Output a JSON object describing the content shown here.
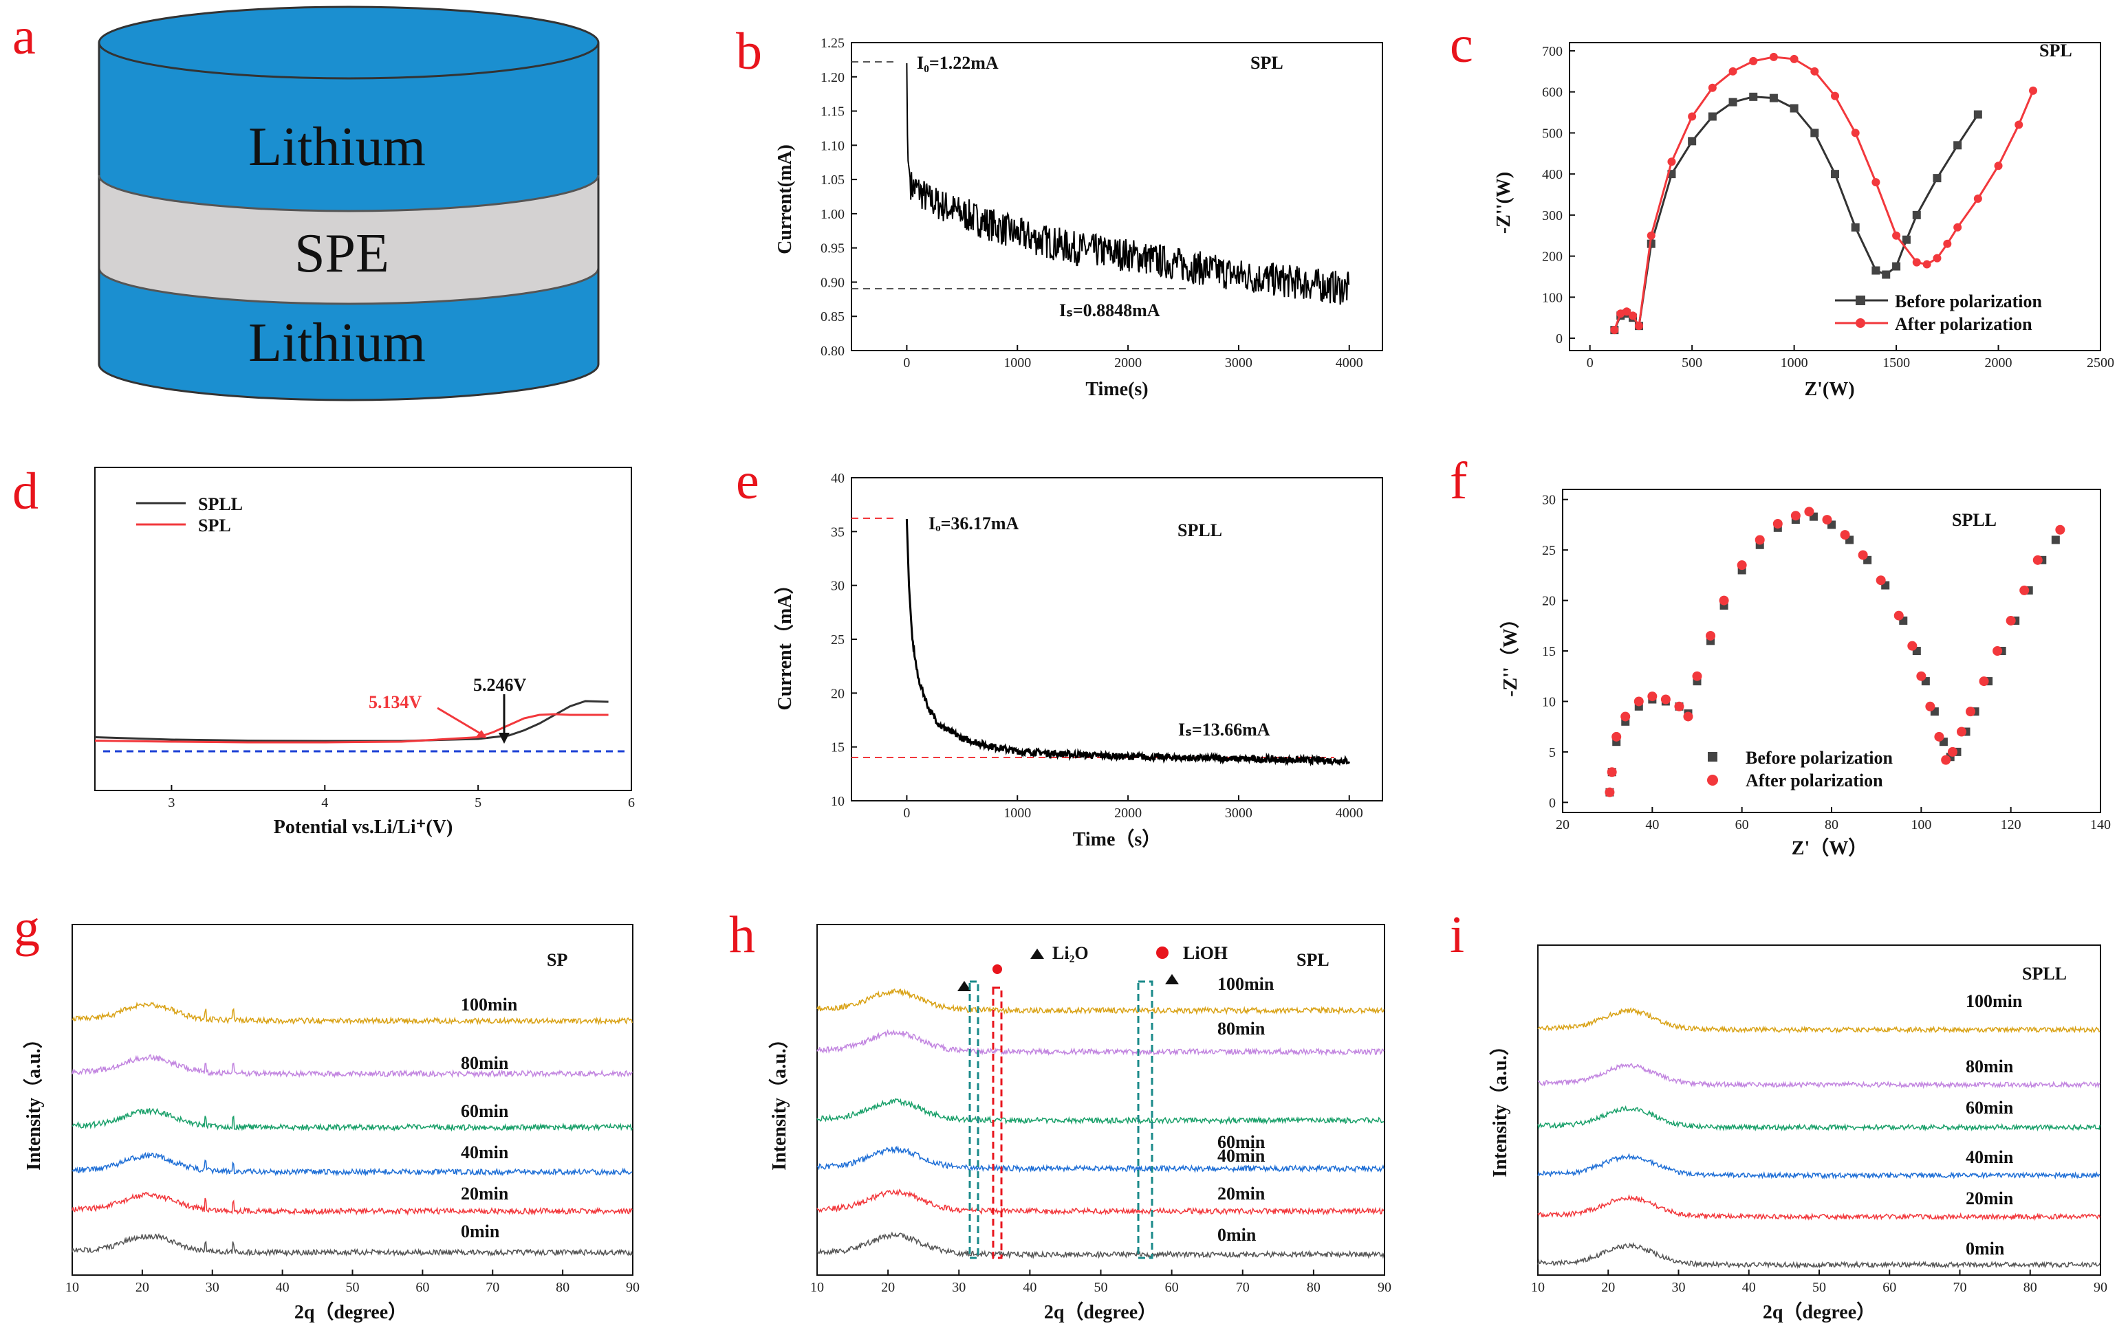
{
  "panels": {
    "a": {
      "letter": "a",
      "layers": [
        "Lithium",
        "SPE",
        "Lithium"
      ]
    },
    "b": {
      "letter": "b",
      "title": "SPL",
      "xlabel": "Time(s)",
      "ylabel": "Current(mA)",
      "i0": "I₀=1.22mA",
      "is": "Iₛ=0.8848mA"
    },
    "c": {
      "letter": "c",
      "title": "SPL",
      "xlabel": "Z'(W)",
      "ylabel": "-Z''(W)",
      "legend": [
        "Before polarization",
        "After polarization"
      ]
    },
    "d": {
      "letter": "d",
      "xlabel": "Potential vs.Li/Li⁺(V)",
      "legend": [
        "SPLL",
        "SPL"
      ],
      "v_spl": "5.134V",
      "v_spll": "5.246V"
    },
    "e": {
      "letter": "e",
      "title": "SPLL",
      "xlabel": "Time（s）",
      "ylabel": "Current（mA）",
      "i0": "Iₒ=36.17mA",
      "is": "Iₛ=13.66mA"
    },
    "f": {
      "letter": "f",
      "title": "SPLL",
      "xlabel": "Z'（W）",
      "ylabel": "-Z''（W）",
      "legend": [
        "Before polarization",
        "After polarization"
      ]
    },
    "g": {
      "letter": "g",
      "title": "SP",
      "xlabel": "2q（degree）",
      "ylabel": "Intensity（a.u.）",
      "times": [
        "100min",
        "80min",
        "60min",
        "40min",
        "20min",
        "0min"
      ]
    },
    "h": {
      "letter": "h",
      "title": "SPL",
      "xlabel": "2q（degree）",
      "ylabel": "Intensity（a.u.）",
      "times": [
        "100min",
        "80min",
        "60min",
        "40min",
        "20min",
        "0min"
      ],
      "legend": [
        "Li₂O",
        "LiOH"
      ]
    },
    "i": {
      "letter": "i",
      "title": "SPLL",
      "xlabel": "2q（degree）",
      "ylabel": "Intensity（a.u.）",
      "times": [
        "100min",
        "80min",
        "60min",
        "40min",
        "20min",
        "0min"
      ]
    }
  },
  "colors": {
    "gold": "#d9a216",
    "violet": "#c285e0",
    "green": "#1aa06a",
    "blue": "#1f6fd6",
    "red": "#f2383c",
    "gray": "#555555",
    "cyl_blue": "#1b8fd0",
    "cyl_gray": "#d4d2d2"
  },
  "chart_data": [
    {
      "panel": "b",
      "type": "line",
      "title": "SPL",
      "xlabel": "Time(s)",
      "ylabel": "Current(mA)",
      "xlim": [
        -500,
        4300
      ],
      "ylim": [
        0.8,
        1.25
      ],
      "xticks": [
        0,
        1000,
        2000,
        3000,
        4000
      ],
      "yticks": [
        0.8,
        0.85,
        0.9,
        0.95,
        1.0,
        1.05,
        1.1,
        1.15,
        1.2,
        1.25
      ],
      "series": [
        {
          "name": "current",
          "x": [
            0,
            2,
            10,
            40,
            100,
            200,
            500,
            1000,
            1500,
            2000,
            2500,
            3000,
            3500,
            4000
          ],
          "y": [
            1.22,
            1.15,
            1.08,
            1.04,
            1.035,
            1.02,
            1.0,
            0.97,
            0.95,
            0.94,
            0.925,
            0.91,
            0.9,
            0.89
          ]
        }
      ],
      "annotations": {
        "I0": 1.22,
        "Is": 0.8848
      }
    },
    {
      "panel": "c",
      "type": "scatter",
      "title": "SPL",
      "xlabel": "Z'(W)",
      "ylabel": "-Z''(W)",
      "xlim": [
        -100,
        2500
      ],
      "ylim": [
        -30,
        720
      ],
      "xticks": [
        0,
        500,
        1000,
        1500,
        2000,
        2500
      ],
      "yticks": [
        0,
        100,
        200,
        300,
        400,
        500,
        600,
        700
      ],
      "series": [
        {
          "name": "Before polarization",
          "x": [
            120,
            150,
            180,
            210,
            240,
            300,
            400,
            500,
            600,
            700,
            800,
            900,
            1000,
            1100,
            1200,
            1300,
            1400,
            1450,
            1500,
            1550,
            1600,
            1700,
            1800,
            1900
          ],
          "y": [
            20,
            55,
            60,
            50,
            30,
            230,
            400,
            480,
            540,
            575,
            588,
            585,
            560,
            500,
            400,
            270,
            165,
            155,
            175,
            240,
            300,
            390,
            470,
            545
          ]
        },
        {
          "name": "After polarization",
          "x": [
            120,
            150,
            180,
            210,
            240,
            300,
            400,
            500,
            600,
            700,
            800,
            900,
            1000,
            1100,
            1200,
            1300,
            1400,
            1500,
            1600,
            1650,
            1700,
            1750,
            1800,
            1900,
            2000,
            2100,
            2170
          ],
          "y": [
            20,
            60,
            65,
            55,
            30,
            250,
            430,
            540,
            610,
            650,
            675,
            685,
            680,
            650,
            590,
            500,
            380,
            250,
            185,
            180,
            195,
            230,
            270,
            340,
            420,
            520,
            603
          ]
        }
      ]
    },
    {
      "panel": "d",
      "type": "line",
      "xlabel": "Potential vs.Li/Li⁺(V)",
      "xlim": [
        2.5,
        6
      ],
      "xticks": [
        3,
        4,
        5,
        6
      ],
      "series": [
        {
          "name": "SPLL",
          "x": [
            2.5,
            3,
            3.5,
            4,
            4.5,
            5,
            5.2,
            5.3,
            5.4,
            5.5,
            5.6,
            5.7,
            5.85
          ],
          "y": [
            0.55,
            0.48,
            0.45,
            0.44,
            0.44,
            0.5,
            0.6,
            0.75,
            0.95,
            1.2,
            1.45,
            1.6,
            1.58
          ]
        },
        {
          "name": "SPL",
          "x": [
            2.5,
            3,
            3.5,
            4,
            4.5,
            5,
            5.1,
            5.2,
            5.3,
            5.4,
            5.5,
            5.6,
            5.85
          ],
          "y": [
            0.45,
            0.42,
            0.4,
            0.4,
            0.42,
            0.55,
            0.7,
            0.9,
            1.1,
            1.2,
            1.22,
            1.2,
            1.2
          ]
        }
      ],
      "annotations": {
        "SPL_onset": 5.134,
        "SPLL_onset": 5.246
      }
    },
    {
      "panel": "e",
      "type": "line",
      "title": "SPLL",
      "xlabel": "Time（s）",
      "ylabel": "Current（mA）",
      "xlim": [
        -500,
        4300
      ],
      "ylim": [
        10,
        40
      ],
      "xticks": [
        0,
        1000,
        2000,
        3000,
        4000
      ],
      "yticks": [
        10,
        15,
        20,
        25,
        30,
        35,
        40
      ],
      "series": [
        {
          "name": "current",
          "x": [
            0,
            20,
            50,
            100,
            200,
            300,
            500,
            700,
            1000,
            1500,
            2000,
            2500,
            3000,
            3500,
            4000
          ],
          "y": [
            36.17,
            30,
            25,
            21.5,
            18.5,
            17,
            15.8,
            15.2,
            14.6,
            14.3,
            14.1,
            14.0,
            13.9,
            13.8,
            13.7
          ]
        }
      ],
      "annotations": {
        "I0": 36.17,
        "Is": 13.66
      }
    },
    {
      "panel": "f",
      "type": "scatter",
      "title": "SPLL",
      "xlabel": "Z'（W）",
      "ylabel": "-Z''（W）",
      "xlim": [
        20,
        140
      ],
      "ylim": [
        -1,
        31
      ],
      "xticks": [
        20,
        40,
        60,
        80,
        100,
        120,
        140
      ],
      "yticks": [
        0,
        5,
        10,
        15,
        20,
        25,
        30
      ],
      "series": [
        {
          "name": "Before polarization",
          "x": [
            30.5,
            31,
            32,
            34,
            37,
            40,
            43,
            46,
            48,
            50,
            53,
            56,
            60,
            64,
            68,
            72,
            76,
            80,
            84,
            88,
            92,
            96,
            99,
            101,
            103,
            105,
            106.5,
            108,
            110,
            112,
            115,
            118,
            121,
            124,
            127,
            130
          ],
          "y": [
            1,
            3,
            6,
            8,
            9.5,
            10.2,
            10,
            9.5,
            8.8,
            12,
            16,
            19.5,
            23,
            25.5,
            27.2,
            28,
            28.3,
            27.5,
            26,
            24,
            21.5,
            18,
            15,
            12,
            9,
            6,
            4.5,
            5,
            7,
            9,
            12,
            15,
            18,
            21,
            24,
            26
          ]
        },
        {
          "name": "After polarization",
          "x": [
            30.5,
            31,
            32,
            34,
            37,
            40,
            43,
            46,
            48,
            50,
            53,
            56,
            60,
            64,
            68,
            72,
            75,
            79,
            83,
            87,
            91,
            95,
            98,
            100,
            102,
            104,
            105.5,
            107,
            109,
            111,
            114,
            117,
            120,
            123,
            126,
            131
          ],
          "y": [
            1,
            3,
            6.5,
            8.5,
            10,
            10.5,
            10.2,
            9.5,
            8.5,
            12.5,
            16.5,
            20,
            23.5,
            26,
            27.6,
            28.4,
            28.8,
            28,
            26.5,
            24.5,
            22,
            18.5,
            15.5,
            12.5,
            9.5,
            6.5,
            4.2,
            5,
            7,
            9,
            12,
            15,
            18,
            21,
            24,
            27
          ]
        }
      ]
    },
    {
      "panel": "g",
      "type": "line",
      "title": "SP",
      "xlabel": "2q（degree）",
      "ylabel": "Intensity（a.u.）",
      "xlim": [
        10,
        90
      ],
      "xticks": [
        10,
        20,
        30,
        40,
        50,
        60,
        70,
        80,
        90
      ],
      "series": [
        "0min",
        "20min",
        "40min",
        "60min",
        "80min",
        "100min"
      ]
    },
    {
      "panel": "h",
      "type": "line",
      "title": "SPL",
      "xlabel": "2q（degree）",
      "ylabel": "Intensity（a.u.）",
      "xlim": [
        10,
        90
      ],
      "xticks": [
        10,
        20,
        30,
        40,
        50,
        60,
        70,
        80,
        90
      ],
      "series": [
        "0min",
        "20min",
        "40min",
        "60min",
        "80min",
        "100min"
      ]
    },
    {
      "panel": "i",
      "type": "line",
      "title": "SPLL",
      "xlabel": "2q（degree）",
      "ylabel": "Intensity（a.u.）",
      "xlim": [
        10,
        90
      ],
      "xticks": [
        10,
        20,
        30,
        40,
        50,
        60,
        70,
        80,
        90
      ],
      "series": [
        "0min",
        "20min",
        "40min",
        "60min",
        "80min",
        "100min"
      ]
    }
  ]
}
